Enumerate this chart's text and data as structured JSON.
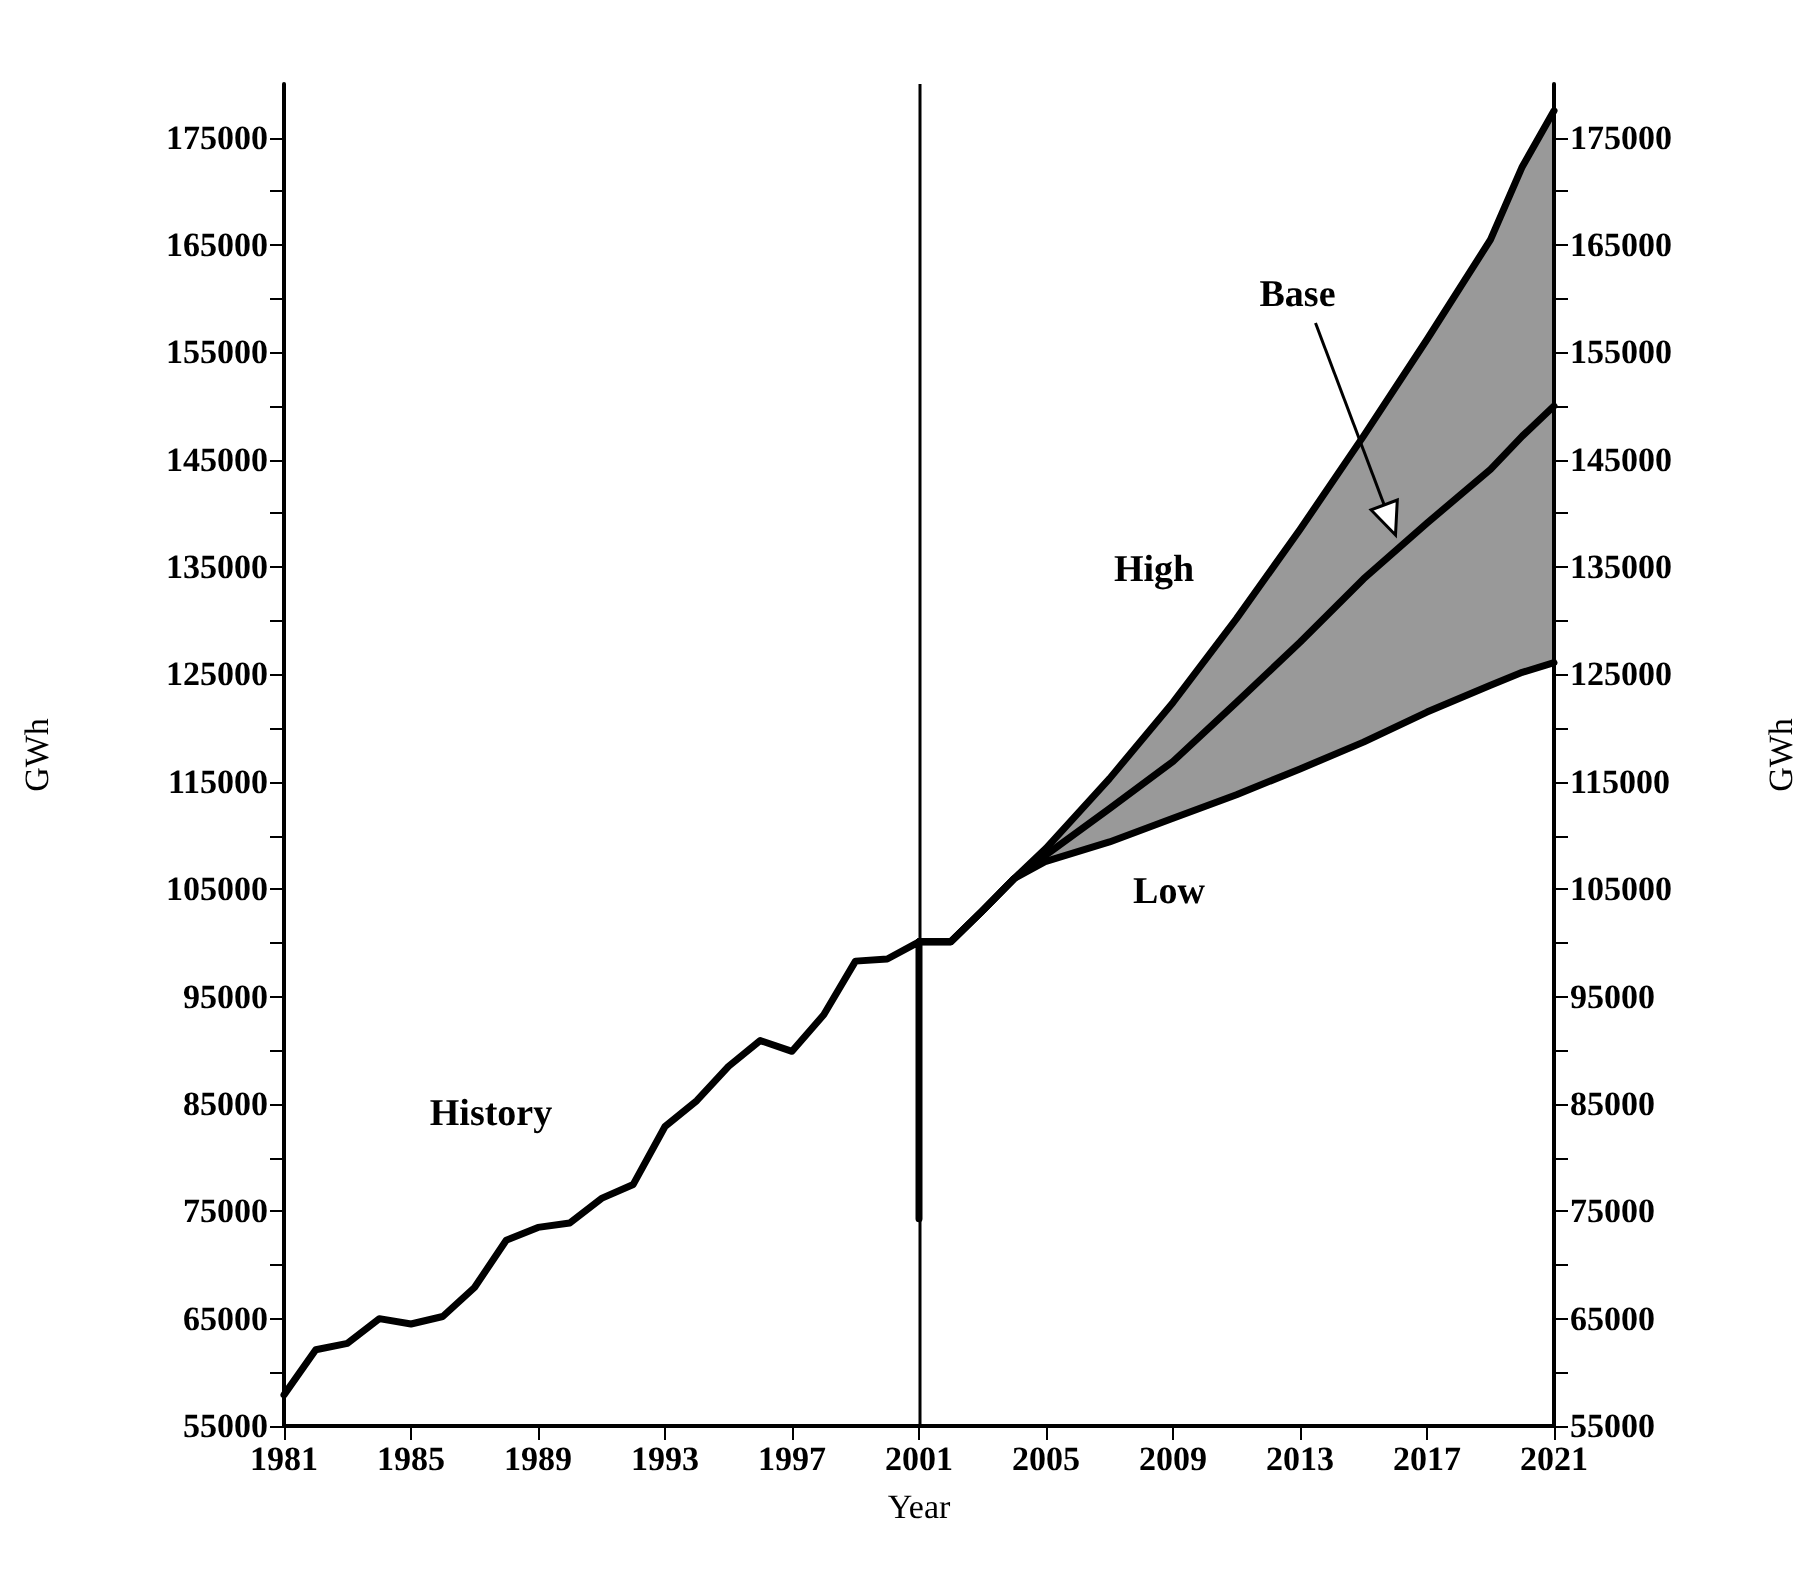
{
  "chart_data": {
    "type": "line",
    "xlabel": "Year",
    "ylabel": "GWh",
    "y2label": "GWh",
    "xlim": [
      1981,
      2021
    ],
    "xticks": [
      1981,
      1985,
      1989,
      1993,
      1997,
      2001,
      2005,
      2009,
      2013,
      2017,
      2021
    ],
    "ylim": [
      55000,
      180000
    ],
    "yticks": [
      55000,
      {
        "value": 60000,
        "label": null
      },
      65000,
      {
        "value": 70000,
        "label": null
      },
      75000,
      {
        "value": 80000,
        "label": null
      },
      85000,
      {
        "value": 90000,
        "label": null
      },
      95000,
      {
        "value": 100000,
        "label": null
      },
      105000,
      {
        "value": 110000,
        "label": null
      },
      115000,
      {
        "value": 120000,
        "label": null
      },
      125000,
      {
        "value": 130000,
        "label": null
      },
      135000,
      {
        "value": 140000,
        "label": null
      },
      145000,
      {
        "value": 150000,
        "label": null
      },
      155000,
      {
        "value": 160000,
        "label": null
      },
      165000,
      {
        "value": 170000,
        "label": null
      },
      175000
    ],
    "y2lim": [
      55000,
      180000
    ],
    "y2ticks": [
      55000,
      {
        "value": 60000,
        "label": null
      },
      65000,
      {
        "value": 70000,
        "label": null
      },
      75000,
      {
        "value": 80000,
        "label": null
      },
      85000,
      {
        "value": 90000,
        "label": null
      },
      95000,
      {
        "value": 100000,
        "label": null
      },
      105000,
      {
        "value": 110000,
        "label": null
      },
      115000,
      {
        "value": 120000,
        "label": null
      },
      125000,
      {
        "value": 130000,
        "label": null
      },
      135000,
      {
        "value": 140000,
        "label": null
      },
      145000,
      {
        "value": 150000,
        "label": null
      },
      155000,
      {
        "value": 160000,
        "label": null
      },
      165000,
      {
        "value": 170000,
        "label": null
      },
      175000
    ],
    "grid": false,
    "legend": false,
    "marker": "none",
    "line_style": "solid",
    "ref_lines": [
      {
        "axis": "x",
        "value": 2001,
        "color": "#000000"
      }
    ],
    "series": [
      {
        "name": "History",
        "color": "#000000",
        "x": [
          1981,
          1982,
          1983,
          1984,
          1985,
          1986,
          1987,
          1988,
          1989,
          1990,
          1991,
          1992,
          1993,
          1994,
          1995,
          1996,
          1997,
          1998,
          1999,
          2000,
          2001,
          2001
        ],
        "values": [
          57900,
          62100,
          62700,
          65000,
          64500,
          65200,
          67900,
          72300,
          73500,
          73900,
          76200,
          77500,
          82900,
          85300,
          88500,
          90900,
          89900,
          93300,
          98300,
          98500,
          100100,
          74300
        ]
      },
      {
        "name": "High",
        "color": "#000000",
        "x": [
          2001,
          2002,
          2003,
          2004,
          2005,
          2007,
          2009,
          2011,
          2013,
          2015,
          2017,
          2019,
          2020,
          2021
        ],
        "values": [
          100100,
          100100,
          103000,
          106000,
          108800,
          115300,
          122400,
          130200,
          138500,
          147200,
          156200,
          165500,
          172300,
          177500
        ]
      },
      {
        "name": "Base",
        "color": "#000000",
        "x": [
          2001,
          2002,
          2003,
          2004,
          2005,
          2007,
          2009,
          2011,
          2013,
          2015,
          2017,
          2019,
          2020,
          2021
        ],
        "values": [
          100100,
          100100,
          103000,
          106000,
          108200,
          112500,
          116900,
          122400,
          128000,
          133900,
          139100,
          144100,
          147200,
          150000
        ],
        "lower": [
          100100,
          100100,
          103000,
          106000,
          107600,
          109400,
          111600,
          113800,
          116200,
          118700,
          121500,
          124000,
          125200,
          126100
        ],
        "upper": [
          100100,
          100100,
          103000,
          106000,
          108800,
          115300,
          122400,
          130200,
          138500,
          147200,
          156200,
          165500,
          172300,
          177500
        ]
      },
      {
        "name": "Low",
        "color": "#000000",
        "x": [
          2001,
          2002,
          2003,
          2004,
          2005,
          2007,
          2009,
          2011,
          2013,
          2015,
          2017,
          2019,
          2020,
          2021
        ],
        "values": [
          100100,
          100100,
          103000,
          106000,
          107600,
          109400,
          111600,
          113800,
          116200,
          118700,
          121500,
          124000,
          125200,
          126100
        ]
      }
    ]
  }
}
